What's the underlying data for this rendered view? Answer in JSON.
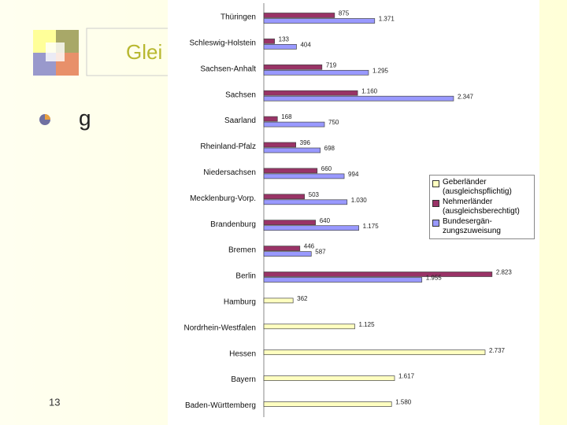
{
  "slide": {
    "title": "Glei",
    "bullet": "g",
    "page_number": "13"
  },
  "chart_data": {
    "type": "hbar",
    "categories": [
      "Thüringen",
      "Schleswig-Holstein",
      "Sachsen-Anhalt",
      "Sachsen",
      "Saarland",
      "Rheinland-Pfalz",
      "Niedersachsen",
      "Mecklenburg-Vorp.",
      "Brandenburg",
      "Bremen",
      "Berlin",
      "Hamburg",
      "Nordrhein-Westfalen",
      "Hessen",
      "Bayern",
      "Baden-Württemberg"
    ],
    "series": [
      {
        "name": "Geberländer (ausgleichspflichtig)",
        "color": "#ffffc0",
        "values": [
          null,
          null,
          null,
          null,
          null,
          null,
          null,
          null,
          null,
          null,
          null,
          362,
          1125,
          2737,
          1617,
          1580
        ],
        "value_labels": [
          null,
          null,
          null,
          null,
          null,
          null,
          null,
          null,
          null,
          null,
          null,
          "362",
          "1.125",
          "2.737",
          "1.617",
          "1.580"
        ]
      },
      {
        "name": "Nehmerländer (ausgleichsberechtigt)",
        "color": "#993366",
        "values": [
          875,
          133,
          719,
          1160,
          168,
          396,
          660,
          503,
          640,
          446,
          2823,
          null,
          null,
          null,
          null,
          null
        ],
        "value_labels": [
          "875",
          "133",
          "719",
          "1.160",
          "168",
          "396",
          "660",
          "503",
          "640",
          "446",
          "2.823",
          null,
          null,
          null,
          null,
          null
        ]
      },
      {
        "name": "Bundesergän-zungszuweisung",
        "color": "#9999ff",
        "values": [
          1371,
          404,
          1295,
          2347,
          750,
          698,
          994,
          1030,
          1175,
          587,
          1955,
          null,
          null,
          null,
          null,
          null
        ],
        "value_labels": [
          "1.371",
          "404",
          "1.295",
          "2.347",
          "750",
          "698",
          "994",
          "1.030",
          "1.175",
          "587",
          "1.955",
          null,
          null,
          null,
          null,
          null
        ]
      }
    ],
    "xlim": [
      0,
      3000
    ]
  }
}
